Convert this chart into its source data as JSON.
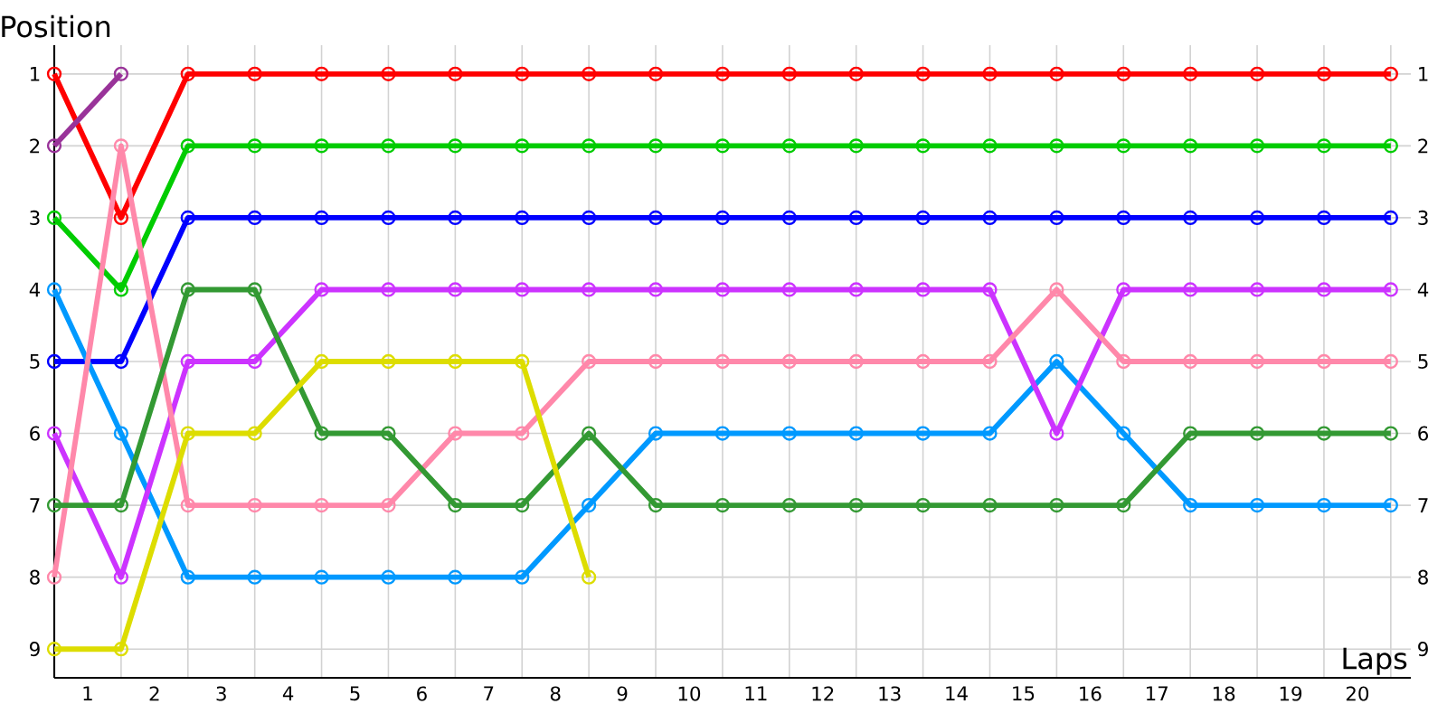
{
  "chart_data": {
    "type": "line",
    "xlabel": "Laps",
    "ylabel": "Position",
    "x": [
      0,
      1,
      2,
      3,
      4,
      5,
      6,
      7,
      8,
      9,
      10,
      11,
      12,
      13,
      14,
      15,
      16,
      17,
      18,
      19,
      20
    ],
    "xlim": [
      0,
      20.3
    ],
    "xticks": [
      {
        "value": 0.5,
        "label": "1"
      },
      {
        "value": 1.5,
        "label": "2"
      },
      {
        "value": 2.5,
        "label": "3"
      },
      {
        "value": 3.5,
        "label": "4"
      },
      {
        "value": 4.5,
        "label": "5"
      },
      {
        "value": 5.5,
        "label": "6"
      },
      {
        "value": 6.5,
        "label": "7"
      },
      {
        "value": 7.5,
        "label": "8"
      },
      {
        "value": 8.5,
        "label": "9"
      },
      {
        "value": 9.5,
        "label": "10"
      },
      {
        "value": 10.5,
        "label": "11"
      },
      {
        "value": 11.5,
        "label": "12"
      },
      {
        "value": 12.5,
        "label": "13"
      },
      {
        "value": 13.5,
        "label": "14"
      },
      {
        "value": 14.5,
        "label": "15"
      },
      {
        "value": 15.5,
        "label": "16"
      },
      {
        "value": 16.5,
        "label": "17"
      },
      {
        "value": 17.5,
        "label": "18"
      },
      {
        "value": 18.5,
        "label": "19"
      },
      {
        "value": 19.5,
        "label": "20"
      }
    ],
    "ylim": [
      9.4,
      0.6
    ],
    "yticks": [
      1,
      2,
      3,
      4,
      5,
      6,
      7,
      8,
      9
    ],
    "y2lim": [
      9.4,
      0.6
    ],
    "y2ticks": [
      1,
      2,
      3,
      4,
      5,
      6,
      7,
      8,
      9
    ],
    "grid": true,
    "marker": "circle",
    "line_style": "solid",
    "series": [
      {
        "color": "#ff0000",
        "values": [
          1,
          3,
          1,
          1,
          1,
          1,
          1,
          1,
          1,
          1,
          1,
          1,
          1,
          1,
          1,
          1,
          1,
          1,
          1,
          1,
          1
        ]
      },
      {
        "color": "#993399",
        "values": [
          2,
          1,
          null,
          null,
          null,
          null,
          null,
          null,
          null,
          null,
          null,
          null,
          null,
          null,
          null,
          null,
          null,
          null,
          null,
          null,
          null
        ]
      },
      {
        "color": "#00cc00",
        "values": [
          3,
          4,
          2,
          2,
          2,
          2,
          2,
          2,
          2,
          2,
          2,
          2,
          2,
          2,
          2,
          2,
          2,
          2,
          2,
          2,
          2
        ]
      },
      {
        "color": "#0000ff",
        "values": [
          5,
          5,
          3,
          3,
          3,
          3,
          3,
          3,
          3,
          3,
          3,
          3,
          3,
          3,
          3,
          3,
          3,
          3,
          3,
          3,
          3
        ]
      },
      {
        "color": "#0099ff",
        "values": [
          4,
          6,
          8,
          8,
          8,
          8,
          8,
          8,
          7,
          6,
          6,
          6,
          6,
          6,
          6,
          5,
          6,
          7,
          7,
          7,
          7
        ]
      },
      {
        "color": "#cc33ff",
        "values": [
          6,
          8,
          5,
          5,
          4,
          4,
          4,
          4,
          4,
          4,
          4,
          4,
          4,
          4,
          4,
          6,
          4,
          4,
          4,
          4,
          4
        ]
      },
      {
        "color": "#ff88aa",
        "values": [
          8,
          2,
          7,
          7,
          7,
          7,
          6,
          6,
          5,
          5,
          5,
          5,
          5,
          5,
          5,
          4,
          5,
          5,
          5,
          5,
          5
        ]
      },
      {
        "color": "#339933",
        "values": [
          7,
          7,
          4,
          4,
          6,
          6,
          7,
          7,
          6,
          7,
          7,
          7,
          7,
          7,
          7,
          7,
          7,
          6,
          6,
          6,
          6
        ]
      },
      {
        "color": "#dddd00",
        "values": [
          9,
          9,
          6,
          6,
          5,
          5,
          5,
          5,
          8,
          null,
          null,
          null,
          null,
          null,
          null,
          null,
          null,
          null,
          null,
          null,
          null
        ]
      }
    ]
  }
}
